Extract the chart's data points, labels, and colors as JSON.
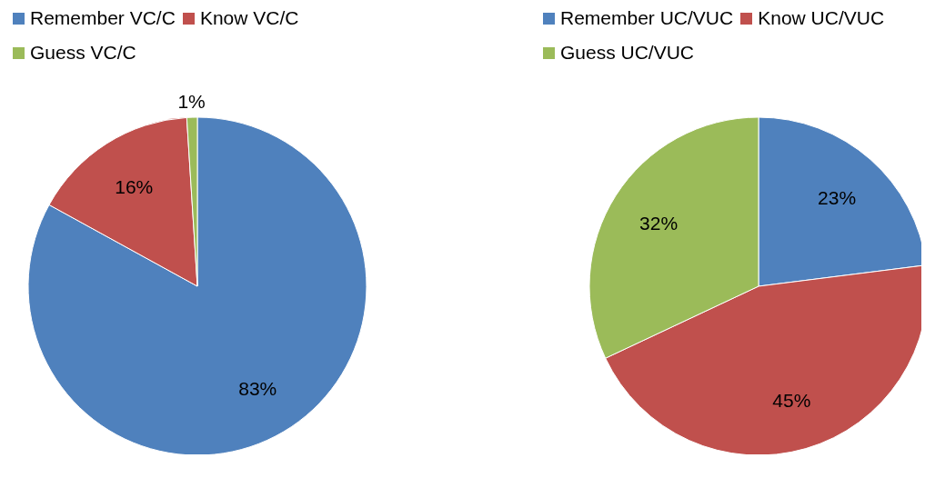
{
  "chart_data": [
    {
      "type": "pie",
      "categories": [
        "Remember VC/C",
        "Know VC/C",
        "Guess VC/C"
      ],
      "values": [
        83,
        16,
        1
      ],
      "colors": [
        "#4f81bd",
        "#c0504d",
        "#9bbb59"
      ],
      "value_labels": [
        "83%",
        "16%",
        "1%"
      ],
      "legend": "top"
    },
    {
      "type": "pie",
      "categories": [
        "Remember UC/VUC",
        "Know UC/VUC",
        "Guess UC/VUC"
      ],
      "values": [
        23,
        45,
        32
      ],
      "colors": [
        "#4f81bd",
        "#c0504d",
        "#9bbb59"
      ],
      "value_labels": [
        "23%",
        "45%",
        "32%"
      ],
      "legend": "top"
    }
  ]
}
